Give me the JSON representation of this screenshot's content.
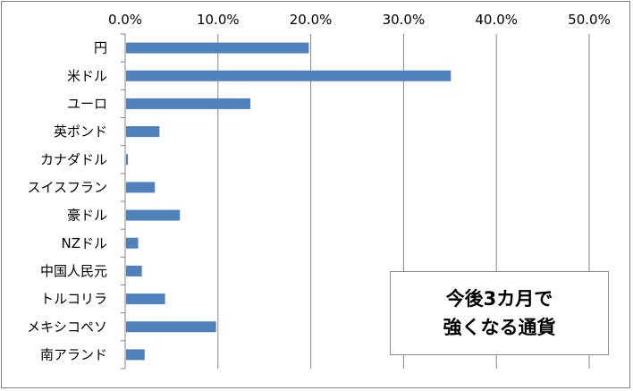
{
  "annotation": {
    "line1": "今後3カ月で",
    "line2": "強くなる通貨"
  },
  "colors": {
    "bar": "#4f81bd",
    "grid": "#868686",
    "axis": "#868686"
  },
  "chart_data": {
    "type": "bar",
    "orientation": "horizontal",
    "categories": [
      "円",
      "米ドル",
      "ユーロ",
      "英ポンド",
      "カナダドル",
      "スイスフラン",
      "豪ドル",
      "NZドル",
      "中国人民元",
      "トルコリラ",
      "メキシコペソ",
      "南アランド"
    ],
    "values": [
      19.7,
      35.0,
      13.4,
      3.6,
      0.2,
      3.1,
      5.8,
      1.3,
      1.7,
      4.2,
      9.7,
      2.0
    ],
    "xlim": [
      0,
      50
    ],
    "xticks": [
      "0.0%",
      "10.0%",
      "20.0%",
      "30.0%",
      "40.0%",
      "50.0%"
    ],
    "x_axis_position": "top",
    "grid": true,
    "legend": "none",
    "title": "",
    "xlabel": "",
    "ylabel": ""
  }
}
